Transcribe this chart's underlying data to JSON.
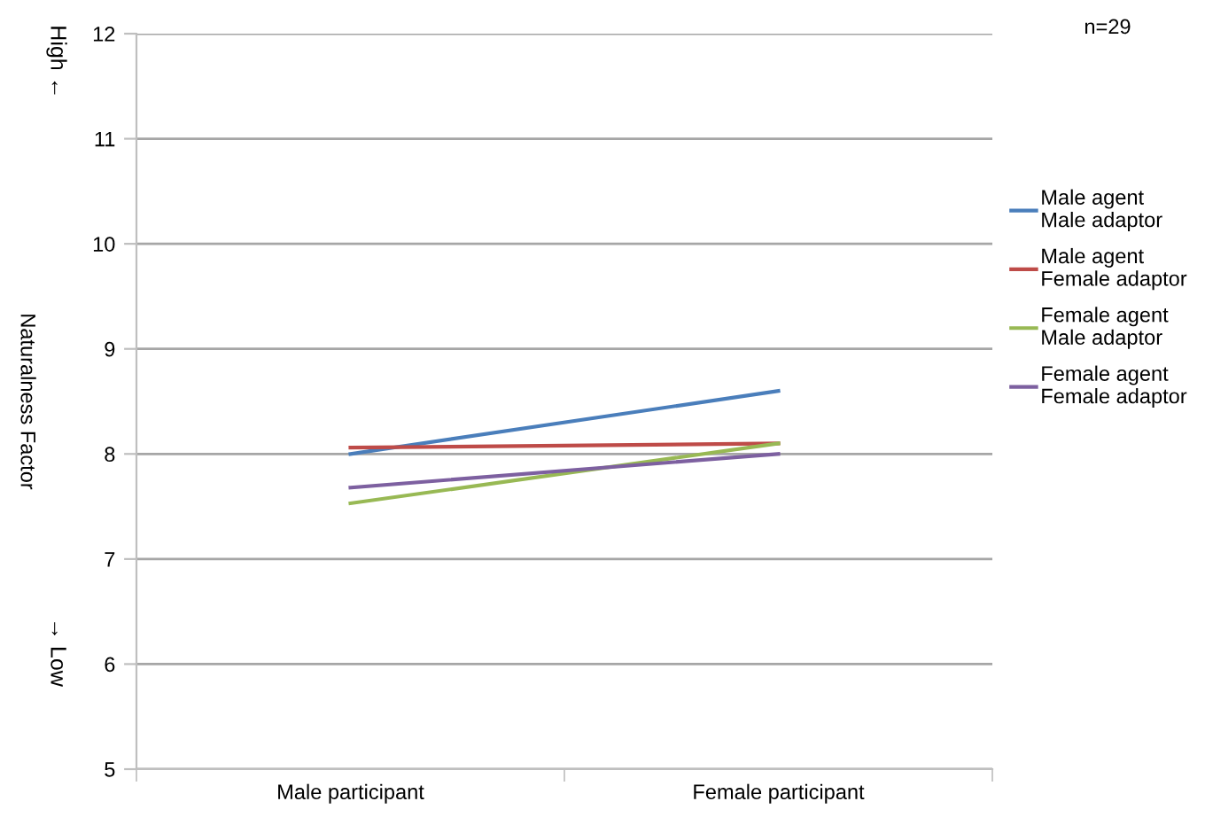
{
  "chart_data": {
    "type": "line",
    "ylabel": "Naturalness Factor",
    "categories": [
      "Male participant",
      "Female participant"
    ],
    "series": [
      {
        "name": "Male agent\nMale adaptor",
        "color": "#4a7ebb",
        "values": [
          8.0,
          8.6
        ]
      },
      {
        "name": "Male agent\nFemale adaptor",
        "color": "#be4b48",
        "values": [
          8.06,
          8.1
        ]
      },
      {
        "name": "Female agent\nMale adaptor",
        "color": "#98b954",
        "values": [
          7.53,
          8.1
        ]
      },
      {
        "name": "Female agent\nFemale adaptor",
        "color": "#7d60a0",
        "values": [
          7.68,
          8.0
        ]
      }
    ],
    "ylim": [
      5,
      12
    ],
    "yticks": [
      5,
      6,
      7,
      8,
      9,
      10,
      11,
      12
    ],
    "grid": "y",
    "legend": "right",
    "annotations": [
      "n=29",
      "High ←",
      "→ Low"
    ]
  }
}
